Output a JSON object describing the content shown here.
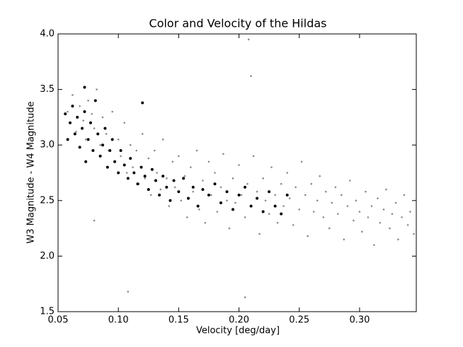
{
  "chart_data": {
    "type": "scatter",
    "title": "Color and Velocity of the Hildas",
    "x_label": "Velocity [deg/day]",
    "y_label": "W3 Magnitude - W4 Magnitude",
    "xlim": [
      0.05,
      0.347
    ],
    "ylim": [
      1.5,
      4.0
    ],
    "xticks": [
      0.05,
      {
        "value": 0.1,
        "label": "0.10"
      },
      0.15,
      {
        "value": 0.2,
        "label": "0.20"
      },
      0.25,
      {
        "value": 0.3,
        "label": "0.30"
      }
    ],
    "yticks": [
      1.5,
      {
        "value": 2.0,
        "label": "2.0"
      },
      2.5,
      {
        "value": 3.0,
        "label": "3.0"
      },
      3.5,
      {
        "value": 4.0,
        "label": "4.0"
      }
    ],
    "grid": false,
    "series": [
      {
        "color": "#8c8c8c",
        "x": [
          0.058,
          0.062,
          0.065,
          0.068,
          0.071,
          0.073,
          0.075,
          0.078,
          0.08,
          0.082,
          0.085,
          0.087,
          0.09,
          0.092,
          0.095,
          0.097,
          0.1,
          0.102,
          0.105,
          0.107,
          0.11,
          0.112,
          0.115,
          0.117,
          0.12,
          0.122,
          0.125,
          0.127,
          0.13,
          0.132,
          0.135,
          0.137,
          0.14,
          0.142,
          0.145,
          0.147,
          0.15,
          0.152,
          0.155,
          0.157,
          0.16,
          0.162,
          0.165,
          0.167,
          0.17,
          0.172,
          0.175,
          0.177,
          0.18,
          0.182,
          0.185,
          0.187,
          0.19,
          0.192,
          0.195,
          0.197,
          0.2,
          0.202,
          0.205,
          0.207,
          0.21,
          0.212,
          0.215,
          0.217,
          0.22,
          0.222,
          0.225,
          0.227,
          0.23,
          0.232,
          0.235,
          0.237,
          0.24,
          0.242,
          0.245,
          0.247,
          0.25,
          0.252,
          0.255,
          0.257,
          0.26,
          0.262,
          0.265,
          0.267,
          0.27,
          0.272,
          0.275,
          0.277,
          0.28,
          0.282,
          0.285,
          0.287,
          0.29,
          0.292,
          0.295,
          0.297,
          0.3,
          0.302,
          0.305,
          0.307,
          0.31,
          0.312,
          0.315,
          0.317,
          0.32,
          0.322,
          0.325,
          0.327,
          0.33,
          0.332,
          0.335,
          0.337,
          0.34,
          0.342,
          0.345,
          0.208,
          0.21,
          0.108,
          0.205,
          0.08
        ],
        "values": [
          3.3,
          3.45,
          3.12,
          3.35,
          3.22,
          3.05,
          3.4,
          3.28,
          3.15,
          3.5,
          3.0,
          3.25,
          3.1,
          2.95,
          3.3,
          2.85,
          3.05,
          2.9,
          3.2,
          2.75,
          3.0,
          2.8,
          2.95,
          2.65,
          3.1,
          2.7,
          2.88,
          2.55,
          2.95,
          2.75,
          2.6,
          3.05,
          2.7,
          2.45,
          2.85,
          2.62,
          2.9,
          2.5,
          2.72,
          2.35,
          2.8,
          2.58,
          2.95,
          2.42,
          2.68,
          2.3,
          2.85,
          2.55,
          2.75,
          2.4,
          2.62,
          2.92,
          2.5,
          2.25,
          2.7,
          2.48,
          2.82,
          2.55,
          2.35,
          2.65,
          2.45,
          2.9,
          2.58,
          2.2,
          2.7,
          2.5,
          2.38,
          2.8,
          2.55,
          2.3,
          2.65,
          2.45,
          2.75,
          2.52,
          2.28,
          2.62,
          2.42,
          2.85,
          2.55,
          2.18,
          2.65,
          2.4,
          2.5,
          2.72,
          2.35,
          2.58,
          2.25,
          2.48,
          2.62,
          2.38,
          2.55,
          2.15,
          2.45,
          2.68,
          2.32,
          2.5,
          2.4,
          2.22,
          2.58,
          2.35,
          2.45,
          2.1,
          2.52,
          2.3,
          2.42,
          2.6,
          2.25,
          2.38,
          2.48,
          2.15,
          2.35,
          2.55,
          2.28,
          2.4,
          2.2,
          3.95,
          3.62,
          1.68,
          1.63,
          2.32
        ]
      },
      {
        "color": "#000000",
        "x": [
          0.056,
          0.058,
          0.06,
          0.062,
          0.064,
          0.066,
          0.068,
          0.07,
          0.072,
          0.073,
          0.075,
          0.077,
          0.079,
          0.081,
          0.083,
          0.085,
          0.087,
          0.089,
          0.091,
          0.093,
          0.095,
          0.097,
          0.1,
          0.102,
          0.105,
          0.108,
          0.11,
          0.113,
          0.116,
          0.119,
          0.122,
          0.125,
          0.128,
          0.131,
          0.134,
          0.137,
          0.14,
          0.143,
          0.146,
          0.15,
          0.154,
          0.158,
          0.162,
          0.166,
          0.17,
          0.175,
          0.18,
          0.185,
          0.19,
          0.195,
          0.2,
          0.205,
          0.21,
          0.215,
          0.22,
          0.225,
          0.23,
          0.235,
          0.24,
          0.072,
          0.12
        ],
        "values": [
          3.28,
          3.05,
          3.2,
          3.35,
          3.1,
          3.25,
          2.98,
          3.15,
          3.3,
          2.85,
          3.05,
          3.2,
          2.95,
          3.4,
          3.1,
          2.9,
          3.0,
          3.15,
          2.8,
          2.95,
          3.05,
          2.85,
          2.75,
          2.95,
          2.82,
          2.7,
          2.88,
          2.75,
          2.65,
          2.8,
          2.72,
          2.6,
          2.78,
          2.68,
          2.55,
          2.72,
          2.62,
          2.5,
          2.68,
          2.58,
          2.7,
          2.52,
          2.62,
          2.45,
          2.6,
          2.55,
          2.65,
          2.48,
          2.58,
          2.42,
          2.55,
          2.62,
          2.45,
          2.52,
          2.4,
          2.58,
          2.45,
          2.38,
          2.55,
          3.52,
          3.38
        ]
      }
    ]
  }
}
